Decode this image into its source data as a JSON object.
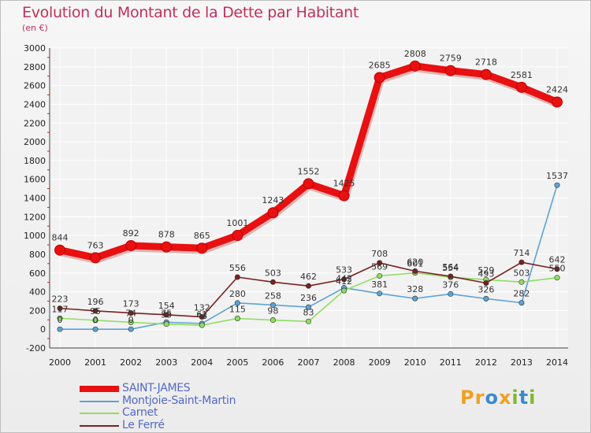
{
  "title": "Evolution du Montant de la Dette par Habitant",
  "subtitle": "(en €)",
  "logo": {
    "text_p": "Pr",
    "text_o": "o",
    "text_x": "x",
    "text_i": "i",
    "text_t": "t",
    "text_i2": "i"
  },
  "chart_data": {
    "type": "line",
    "title": "Evolution du Montant de la Dette par Habitant",
    "ylabel": "(en €)",
    "xlabel": "",
    "x": [
      "2000",
      "2001",
      "2002",
      "2003",
      "2004",
      "2005",
      "2006",
      "2007",
      "2008",
      "2009",
      "2010",
      "2011",
      "2012",
      "2013",
      "2014"
    ],
    "ylim": [
      -200,
      3000
    ],
    "yticks": [
      "-200",
      "0",
      "200",
      "400",
      "600",
      "800",
      "1000",
      "1200",
      "1400",
      "1600",
      "1800",
      "2000",
      "2200",
      "2400",
      "2600",
      "2800",
      "3000"
    ],
    "grid": true,
    "legend_position": "bottom-left",
    "series": [
      {
        "name": "SAINT-JAMES",
        "color": "#e81010",
        "values": [
          844,
          763,
          892,
          878,
          865,
          1001,
          1243,
          1552,
          1425,
          2685,
          2808,
          2759,
          2718,
          2581,
          2424
        ],
        "labels": [
          "844",
          "763",
          "892",
          "878",
          "865",
          "1001",
          "1243",
          "1552",
          "1425",
          "2685",
          "2808",
          "2759",
          "2718",
          "2581",
          "2424"
        ]
      },
      {
        "name": "Montjoie-Saint-Martin",
        "color": "#5ba3d6",
        "values": [
          0,
          0,
          0,
          75,
          61,
          280,
          258,
          236,
          442,
          381,
          328,
          376,
          326,
          282,
          1537
        ],
        "labels": [
          "0",
          "0",
          "0",
          "75",
          "61",
          "280",
          "258",
          "236",
          "442",
          "381",
          "328",
          "376",
          "326",
          "282",
          "1537"
        ]
      },
      {
        "name": "Carnet",
        "color": "#90dd60",
        "values": [
          117,
          95,
          74,
          55,
          43,
          115,
          98,
          83,
          412,
          569,
          601,
          554,
          529,
          503,
          550
        ],
        "labels": [
          "117",
          "95",
          "74",
          "55",
          "43",
          "115",
          "98",
          "83",
          "412",
          "569",
          "601",
          "554",
          "529",
          "503",
          "550"
        ]
      },
      {
        "name": "Le Ferré",
        "color": "#7a2020",
        "values": [
          223,
          196,
          173,
          154,
          132,
          556,
          503,
          462,
          533,
          708,
          620,
          564,
          493,
          714,
          642
        ],
        "labels": [
          "223",
          "196",
          "173",
          "154",
          "132",
          "556",
          "503",
          "462",
          "533",
          "708",
          "620",
          "564",
          "493",
          "714",
          "642"
        ]
      }
    ]
  }
}
